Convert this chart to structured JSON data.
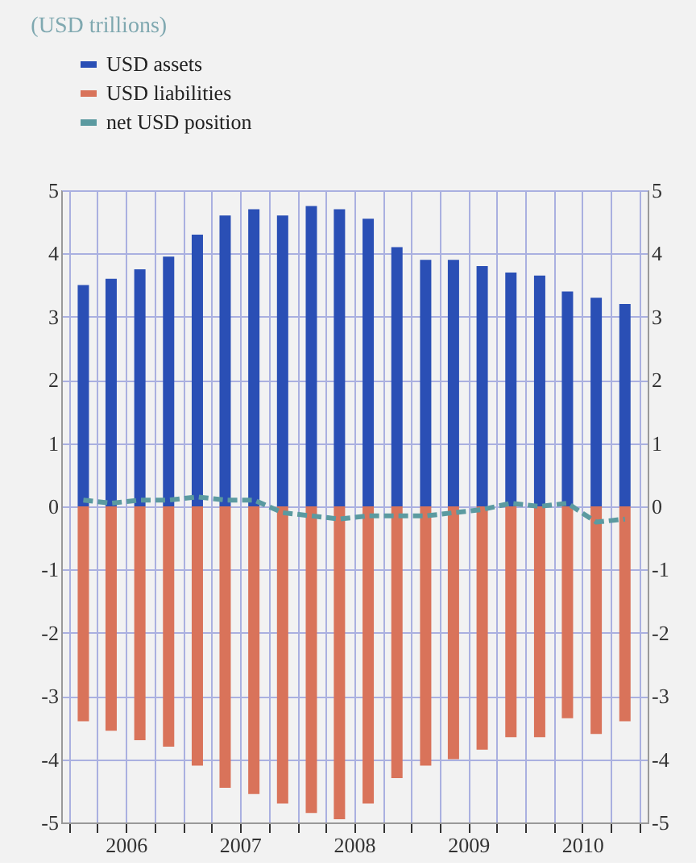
{
  "chart_data": {
    "type": "bar",
    "annotations": [
      "(USD trillions)"
    ],
    "stacked": true,
    "x": [
      "2006-02-15",
      "2006-05-15",
      "2006-08-15",
      "2006-11-15",
      "2007-02-15",
      "2007-05-15",
      "2007-08-15",
      "2007-11-15",
      "2008-02-15",
      "2008-05-15",
      "2008-08-15",
      "2008-11-15",
      "2009-02-15",
      "2009-05-15",
      "2009-08-15",
      "2009-11-15",
      "2010-02-15",
      "2010-05-15",
      "2010-08-15",
      "2010-11-15"
    ],
    "series": [
      {
        "name": "USD assets",
        "color": "#2a4fb5",
        "values": [
          3.5,
          3.6,
          3.75,
          3.95,
          4.3,
          4.6,
          4.7,
          4.6,
          4.75,
          4.7,
          4.55,
          4.1,
          3.9,
          3.9,
          3.8,
          3.7,
          3.65,
          3.4,
          3.3,
          3.2
        ]
      },
      {
        "name": "USD liabilities",
        "color": "#d9735a",
        "values": [
          -3.4,
          -3.55,
          -3.7,
          -3.8,
          -4.1,
          -4.45,
          -4.55,
          -4.7,
          -4.85,
          -4.95,
          -4.7,
          -4.3,
          -4.1,
          -4.0,
          -3.85,
          -3.65,
          -3.65,
          -3.35,
          -3.6,
          -3.4
        ]
      },
      {
        "name": "net USD position",
        "color": "#5b9aa0",
        "type": "line",
        "line_style": "dashed",
        "marker": "none",
        "values": [
          0.1,
          0.05,
          0.1,
          0.1,
          0.15,
          0.1,
          0.1,
          -0.1,
          -0.15,
          -0.2,
          -0.15,
          -0.15,
          -0.15,
          -0.1,
          -0.05,
          0.05,
          0.0,
          0.05,
          -0.25,
          -0.2
        ]
      }
    ],
    "xlim": [
      "2006-01",
      "2011-01"
    ],
    "xticks": [
      {
        "value": "2006-01",
        "label": null
      },
      {
        "value": "2006-04",
        "label": null
      },
      {
        "value": "2006-07",
        "label": "2006"
      },
      {
        "value": "2006-10",
        "label": null
      },
      {
        "value": "2007-01",
        "label": null
      },
      {
        "value": "2007-04",
        "label": null
      },
      {
        "value": "2007-07",
        "label": "2007"
      },
      {
        "value": "2007-10",
        "label": null
      },
      {
        "value": "2008-01",
        "label": null
      },
      {
        "value": "2008-04",
        "label": null
      },
      {
        "value": "2008-07",
        "label": "2008"
      },
      {
        "value": "2008-10",
        "label": null
      },
      {
        "value": "2009-01",
        "label": null
      },
      {
        "value": "2009-04",
        "label": null
      },
      {
        "value": "2009-07",
        "label": "2009"
      },
      {
        "value": "2009-10",
        "label": null
      },
      {
        "value": "2010-01",
        "label": null
      },
      {
        "value": "2010-04",
        "label": null
      },
      {
        "value": "2010-07",
        "label": "2010"
      },
      {
        "value": "2010-10",
        "label": null
      },
      {
        "value": "2011-01",
        "label": null
      }
    ],
    "ylim": [
      -5,
      5
    ],
    "yticks": [
      -5,
      -4,
      -3,
      -2,
      -1,
      0,
      1,
      2,
      3,
      4,
      5
    ],
    "y2lim": [
      -5,
      5
    ],
    "y2ticks": [
      -5,
      -4,
      -3,
      -2,
      -1,
      0,
      1,
      2,
      3,
      4,
      5
    ],
    "grid": true,
    "legend": "top left"
  }
}
